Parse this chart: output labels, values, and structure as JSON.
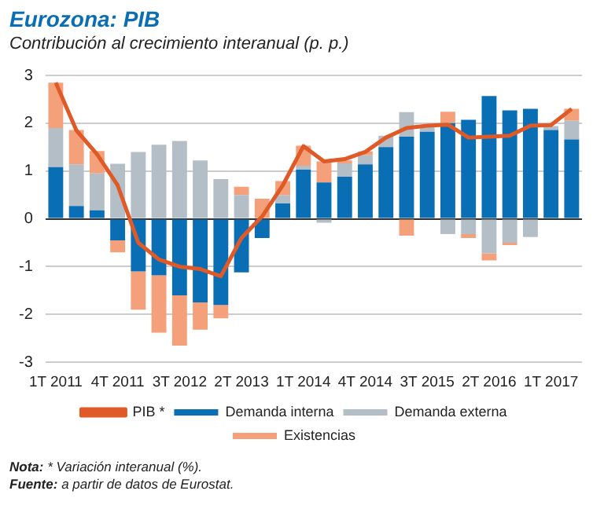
{
  "chart_data": {
    "type": "bar",
    "title": "Eurozona: PIB",
    "subtitle": "Contribución al crecimiento interanual (p. p.)",
    "categories": [
      "1T 2011",
      null,
      null,
      "4T 2011",
      null,
      null,
      "3T 2012",
      null,
      null,
      "2T 2013",
      null,
      null,
      "1T 2014",
      null,
      null,
      "4T 2014",
      null,
      null,
      "3T 2015",
      null,
      null,
      "2T 2016",
      null,
      null,
      "1T 2017",
      null
    ],
    "stacked": true,
    "series": [
      {
        "name": "Demanda interna",
        "color": "#0a6eb4",
        "values": [
          1.08,
          0.27,
          0.18,
          -0.45,
          -1.1,
          -1.18,
          -1.6,
          -1.75,
          -1.8,
          -1.12,
          -0.4,
          0.32,
          1.03,
          0.76,
          0.88,
          1.14,
          1.5,
          1.72,
          1.82,
          2.0,
          2.07,
          2.57,
          2.27,
          2.3,
          1.86,
          1.66
        ]
      },
      {
        "name": "Demanda externa",
        "color": "#b4bec6",
        "values": [
          0.82,
          0.87,
          0.77,
          1.15,
          1.4,
          1.55,
          1.63,
          1.22,
          0.83,
          0.5,
          0,
          0.17,
          0.08,
          -0.08,
          0.28,
          0.19,
          0.24,
          0.51,
          0.1,
          -0.32,
          -0.32,
          -0.72,
          -0.5,
          -0.38,
          0.08,
          0.39
        ]
      },
      {
        "name": "Existencias",
        "color": "#f4a07a",
        "values": [
          0.95,
          0.72,
          0.47,
          -0.25,
          -0.8,
          -1.2,
          -1.05,
          -0.57,
          -0.28,
          0.17,
          0.42,
          0.3,
          0.42,
          0.44,
          0.06,
          0.08,
          0,
          -0.35,
          0,
          0.24,
          -0.08,
          -0.15,
          -0.05,
          0,
          0,
          0.25
        ]
      },
      {
        "name": "PIB *",
        "type": "line",
        "color": "#e05a28",
        "marker": "none",
        "values": [
          2.85,
          1.85,
          1.35,
          0.7,
          -0.5,
          -0.85,
          -1.0,
          -1.05,
          -1.2,
          -0.4,
          0.05,
          0.7,
          1.52,
          1.2,
          1.25,
          1.4,
          1.7,
          1.9,
          1.95,
          1.97,
          1.7,
          1.72,
          1.74,
          1.95,
          1.96,
          2.3
        ]
      }
    ],
    "ylim": [
      -3,
      3
    ],
    "yticks": [
      -3,
      -2,
      -1,
      0,
      1,
      2,
      3
    ],
    "grid": "y",
    "legend": "bottom",
    "annotations": [
      "Nota: * Variación interanual (%).",
      "Fuente: a partir de datos de Eurostat."
    ]
  }
}
